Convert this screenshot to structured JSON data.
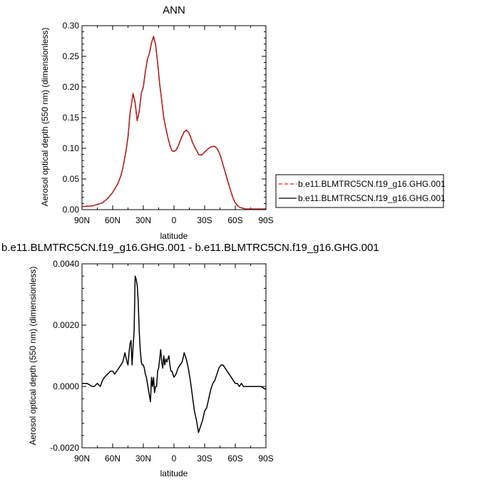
{
  "chart_data": [
    {
      "type": "line",
      "title": "ANN",
      "xlabel": "latitude",
      "ylabel": "Aerosol optical depth (550 nm) (dimensionless)",
      "xlim": [
        90,
        -90
      ],
      "ylim": [
        0,
        0.3
      ],
      "xticks": [
        90,
        60,
        30,
        0,
        -30,
        -60,
        -90
      ],
      "xtick_labels": [
        "90N",
        "60N",
        "30N",
        "0",
        "30S",
        "60S",
        "90S"
      ],
      "yticks": [
        0,
        0.05,
        0.1,
        0.15,
        0.2,
        0.25,
        0.3
      ],
      "ytick_labels": [
        "0.00",
        "0.05",
        "0.10",
        "0.15",
        "0.20",
        "0.25",
        "0.30"
      ],
      "grid": false,
      "legend_position": "right",
      "colors": {
        "series1": "#e8231f",
        "series2": "#000000"
      },
      "series": [
        {
          "name": "b.e11.BLMTRC5CN.f19_g16.GHG.001",
          "style": "dashed",
          "x": [
            90,
            80,
            70,
            65,
            60,
            55,
            52,
            50,
            47,
            45,
            43,
            40,
            38,
            36,
            34,
            32,
            30,
            28,
            26,
            24,
            22,
            20,
            18,
            16,
            14,
            12,
            10,
            8,
            6,
            4,
            2,
            0,
            -2,
            -4,
            -6,
            -8,
            -10,
            -12,
            -14,
            -16,
            -18,
            -20,
            -22,
            -24,
            -26,
            -28,
            -30,
            -32,
            -34,
            -36,
            -38,
            -40,
            -42,
            -44,
            -46,
            -48,
            -50,
            -52,
            -54,
            -56,
            -58,
            -60,
            -62,
            -64,
            -66,
            -68,
            -70,
            -75,
            -80,
            -85,
            -90
          ],
          "y": [
            0.005,
            0.006,
            0.011,
            0.018,
            0.028,
            0.042,
            0.055,
            0.068,
            0.095,
            0.118,
            0.158,
            0.19,
            0.175,
            0.145,
            0.16,
            0.19,
            0.2,
            0.225,
            0.245,
            0.255,
            0.272,
            0.283,
            0.27,
            0.24,
            0.205,
            0.178,
            0.15,
            0.133,
            0.118,
            0.105,
            0.096,
            0.095,
            0.097,
            0.103,
            0.112,
            0.12,
            0.127,
            0.13,
            0.127,
            0.12,
            0.11,
            0.103,
            0.097,
            0.09,
            0.089,
            0.09,
            0.094,
            0.097,
            0.1,
            0.102,
            0.103,
            0.103,
            0.1,
            0.094,
            0.085,
            0.073,
            0.062,
            0.05,
            0.039,
            0.028,
            0.018,
            0.011,
            0.007,
            0.004,
            0.003,
            0.002,
            0.001,
            0.001,
            0.001,
            0.001,
            0.001
          ]
        },
        {
          "name": "b.e11.BLMTRC5CN.f19_g16.GHG.001",
          "style": "solid",
          "x": [
            90,
            80,
            70,
            65,
            60,
            55,
            52,
            50,
            47,
            45,
            43,
            40,
            38,
            36,
            34,
            32,
            30,
            28,
            26,
            24,
            22,
            20,
            18,
            16,
            14,
            12,
            10,
            8,
            6,
            4,
            2,
            0,
            -2,
            -4,
            -6,
            -8,
            -10,
            -12,
            -14,
            -16,
            -18,
            -20,
            -22,
            -24,
            -26,
            -28,
            -30,
            -32,
            -34,
            -36,
            -38,
            -40,
            -42,
            -44,
            -46,
            -48,
            -50,
            -52,
            -54,
            -56,
            -58,
            -60,
            -62,
            -64,
            -66,
            -68,
            -70,
            -75,
            -80,
            -85,
            -90
          ],
          "y": [
            0.005,
            0.006,
            0.011,
            0.018,
            0.028,
            0.042,
            0.055,
            0.068,
            0.095,
            0.118,
            0.157,
            0.189,
            0.174,
            0.145,
            0.16,
            0.189,
            0.2,
            0.225,
            0.245,
            0.255,
            0.272,
            0.282,
            0.269,
            0.24,
            0.205,
            0.178,
            0.15,
            0.133,
            0.118,
            0.105,
            0.096,
            0.095,
            0.097,
            0.103,
            0.112,
            0.12,
            0.127,
            0.129,
            0.127,
            0.12,
            0.11,
            0.103,
            0.097,
            0.09,
            0.089,
            0.09,
            0.094,
            0.097,
            0.1,
            0.102,
            0.103,
            0.103,
            0.1,
            0.094,
            0.085,
            0.073,
            0.062,
            0.05,
            0.039,
            0.028,
            0.018,
            0.011,
            0.007,
            0.004,
            0.003,
            0.002,
            0.001,
            0.001,
            0.001,
            0.001,
            0.001
          ]
        }
      ]
    },
    {
      "type": "line",
      "title": "b.e11.BLMTRC5CN.f19_g16.GHG.001 - b.e11.BLMTRC5CN.f19_g16.GHG.001",
      "xlabel": "latitude",
      "ylabel": "Aerosol optical depth (550 nm) (dimensionless)",
      "xlim": [
        90,
        -90
      ],
      "ylim": [
        -0.002,
        0.004
      ],
      "xticks": [
        90,
        60,
        30,
        0,
        -30,
        -60,
        -90
      ],
      "xtick_labels": [
        "90N",
        "60N",
        "30N",
        "0",
        "30S",
        "60S",
        "90S"
      ],
      "yticks": [
        -0.002,
        0,
        0.002,
        0.004
      ],
      "ytick_labels": [
        "-0.0020",
        "0.0000",
        "0.0020",
        "0.0040"
      ],
      "grid": false,
      "colors": {
        "series1": "#000000"
      },
      "series": [
        {
          "style": "solid",
          "x": [
            90,
            85,
            80,
            78,
            75,
            72,
            70,
            68,
            65,
            62,
            60,
            58,
            56,
            54,
            52,
            50,
            48,
            46,
            45,
            44,
            43,
            42,
            41,
            40,
            39,
            38,
            37,
            36,
            35,
            34,
            33,
            32,
            31,
            30,
            29,
            28,
            27,
            26,
            25,
            24,
            23,
            22,
            21,
            20,
            19,
            18,
            17,
            16,
            15,
            14,
            13,
            12,
            11,
            10,
            9,
            8,
            7,
            6,
            5,
            4,
            3,
            2,
            1,
            0,
            -2,
            -4,
            -6,
            -8,
            -10,
            -12,
            -14,
            -16,
            -18,
            -20,
            -22,
            -24,
            -26,
            -28,
            -30,
            -32,
            -34,
            -36,
            -38,
            -40,
            -42,
            -44,
            -46,
            -48,
            -50,
            -52,
            -54,
            -56,
            -58,
            -60,
            -62,
            -64,
            -66,
            -68,
            -70,
            -75,
            -80,
            -85,
            -90
          ],
          "y": [
            0.0001,
            0.0001,
            0.0,
            0.0,
            0.0001,
            0.0,
            0.0002,
            0.0003,
            0.0004,
            0.0005,
            0.0005,
            0.0004,
            0.0005,
            0.0006,
            0.0007,
            0.0008,
            0.0011,
            0.0008,
            0.0007,
            0.0011,
            0.0014,
            0.0015,
            0.0007,
            0.0013,
            0.0018,
            0.0036,
            0.0035,
            0.0033,
            0.0028,
            0.0018,
            0.0012,
            0.0008,
            0.0007,
            0.0007,
            0.0006,
            0.0004,
            0.0003,
            0.0001,
            -0.0001,
            -0.0003,
            -0.0005,
            0.0003,
            0.0,
            0.0003,
            -0.0002,
            0.0,
            0.0,
            0.0005,
            0.0006,
            0.0009,
            0.0012,
            0.0008,
            0.0006,
            0.001,
            0.0007,
            0.0009,
            0.0008,
            0.0009,
            0.001,
            0.0007,
            0.0005,
            0.0005,
            0.0004,
            0.0003,
            0.0004,
            0.0006,
            0.0007,
            0.0008,
            0.0011,
            0.0009,
            0.0006,
            0.0002,
            -0.0003,
            -0.0008,
            -0.0011,
            -0.0015,
            -0.0013,
            -0.0011,
            -0.0008,
            -0.0007,
            -0.0004,
            -0.0001,
            0.0001,
            0.0002,
            0.0004,
            0.0006,
            0.0007,
            0.0007,
            0.0006,
            0.0005,
            0.0004,
            0.0003,
            0.0002,
            0.0001,
            0.0001,
            0.0,
            0.0001,
            0.0,
            0.0,
            0.0,
            0.0,
            0.0,
            -0.0001
          ]
        }
      ]
    }
  ]
}
